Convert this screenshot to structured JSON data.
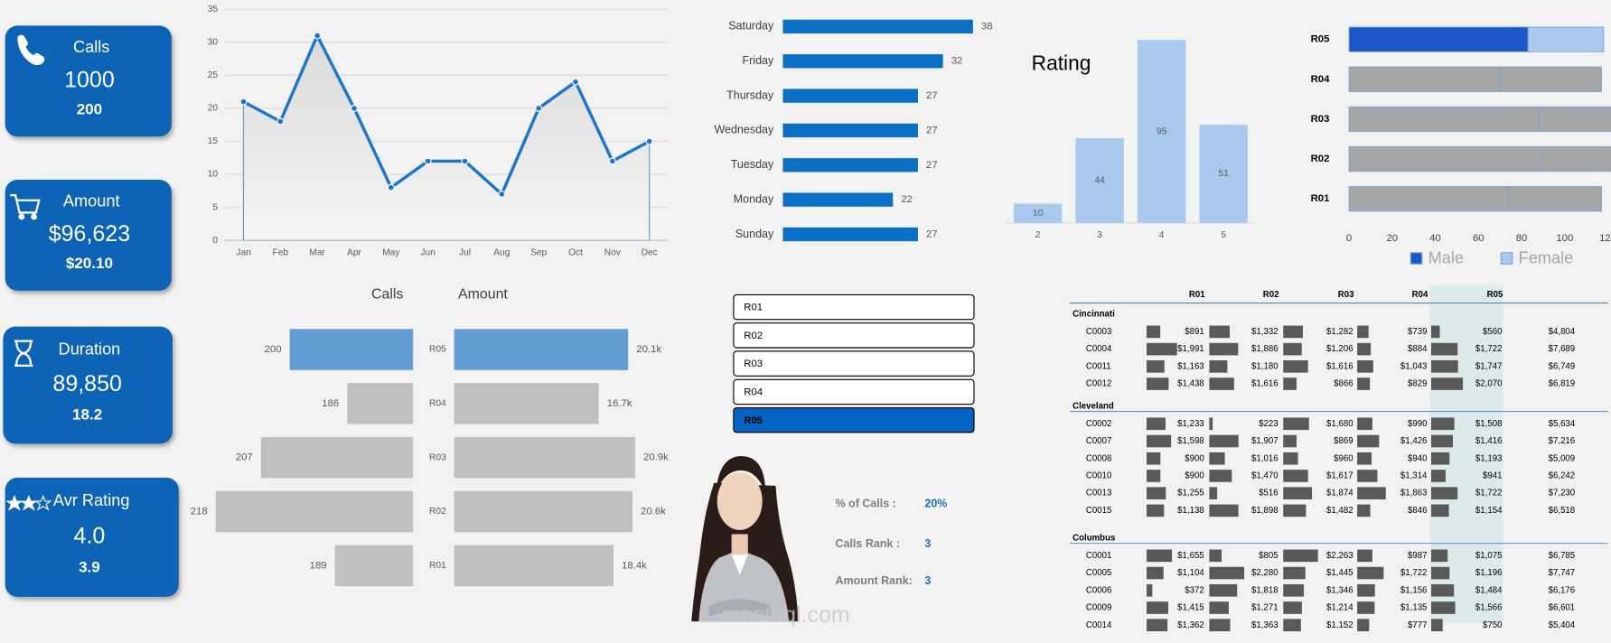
{
  "kpis": [
    {
      "label": "Calls",
      "value": "1000",
      "sub": "200"
    },
    {
      "label": "Amount",
      "value": "$96,623",
      "sub": "$20.10"
    },
    {
      "label": "Duration",
      "value": "89,850",
      "sub": "18.2"
    },
    {
      "label": "Avr Rating",
      "value": "4.0",
      "sub": "3.9"
    }
  ],
  "chart_data": [
    {
      "type": "line",
      "categories": [
        "Jan",
        "Feb",
        "Mar",
        "Apr",
        "May",
        "Jun",
        "Jul",
        "Aug",
        "Sep",
        "Oct",
        "Nov",
        "Dec"
      ],
      "values": [
        21,
        18,
        31,
        20,
        8,
        12,
        12,
        7,
        20,
        24,
        12,
        15
      ],
      "color": "#1b75c9",
      "ylim": [
        0,
        35
      ],
      "yticks": [
        0,
        5,
        10,
        15,
        20,
        25,
        30,
        35
      ],
      "grid": true
    },
    {
      "type": "bar",
      "orientation": "horizontal",
      "categories": [
        "Saturday",
        "Friday",
        "Thursday",
        "Wednesday",
        "Tuesday",
        "Monday",
        "Sunday"
      ],
      "values": [
        38,
        32,
        27,
        27,
        27,
        22,
        27
      ],
      "color": "#0b6fc6"
    },
    {
      "type": "bar",
      "orientation": "vertical",
      "title": "Rating",
      "categories": [
        "2",
        "3",
        "4",
        "5"
      ],
      "values": [
        10,
        44,
        95,
        51
      ],
      "color": "#a9c9ef"
    },
    {
      "type": "stacked_bar",
      "orientation": "horizontal",
      "categories": [
        "R05",
        "R04",
        "R03",
        "R02",
        "R01"
      ],
      "highlight": "R05",
      "muted_color": "#a6a6a6",
      "xlim": [
        0,
        120
      ],
      "xticks": [
        0,
        20,
        40,
        60,
        80,
        100,
        120
      ],
      "series": [
        {
          "name": "Male",
          "color": "#1a56c8",
          "values": [
            83,
            70,
            88,
            89,
            74
          ],
          "value_labels": [
            "83",
            null,
            null,
            null,
            null
          ]
        },
        {
          "name": "Female",
          "color": "#a9c9ef",
          "values": [
            35,
            47,
            37,
            35,
            43
          ]
        }
      ]
    },
    {
      "type": "bar",
      "orientation": "horizontal",
      "categories": [
        "R05",
        "R04",
        "R03",
        "R02",
        "R01"
      ],
      "highlight": "R05",
      "muted_color": "#bfbfbf",
      "series": [
        {
          "name": "Calls",
          "color": "#629dd3",
          "values": [
            200,
            186,
            207,
            218,
            189
          ],
          "xlim": [
            170,
            220
          ]
        },
        {
          "name": "Amount",
          "color": "#629dd3",
          "values": [
            20100,
            16700,
            20900,
            20600,
            18400
          ],
          "value_labels": [
            "20.1k",
            "16.7k",
            "20.9k",
            "20.6k",
            "18.4k"
          ],
          "xlim": [
            0,
            21000
          ]
        }
      ]
    }
  ],
  "slicer": {
    "items": [
      "R01",
      "R02",
      "R03",
      "R04",
      "R05"
    ],
    "selected": "R05"
  },
  "stats": [
    {
      "label": "% of Calls :",
      "value": "20%"
    },
    {
      "label": "Calls Rank :",
      "value": "3"
    },
    {
      "label": "Amount Rank:",
      "value": "3"
    }
  ],
  "watermark": "mostaql.com",
  "table": {
    "columns": [
      "R01",
      "R02",
      "R03",
      "R04",
      "R05"
    ],
    "highlight": "R05",
    "groups": [
      {
        "name": "Cincinnati",
        "rows": [
          {
            "name": "C0003",
            "values": [
              891,
              1332,
              1282,
              739,
              560
            ],
            "labels": [
              "$891",
              "$1,332",
              "$1,282",
              "$739",
              "$560"
            ],
            "total": "$4,804"
          },
          {
            "name": "C0004",
            "values": [
              1991,
              1886,
              1206,
              884,
              1722
            ],
            "labels": [
              "$1,991",
              "$1,886",
              "$1,206",
              "$884",
              "$1,722"
            ],
            "total": "$7,689"
          },
          {
            "name": "C0011",
            "values": [
              1163,
              1180,
              1616,
              1043,
              1747
            ],
            "labels": [
              "$1,163",
              "$1,180",
              "$1,616",
              "$1,043",
              "$1,747"
            ],
            "total": "$6,749"
          },
          {
            "name": "C0012",
            "values": [
              1438,
              1616,
              866,
              829,
              2070
            ],
            "labels": [
              "$1,438",
              "$1,616",
              "$866",
              "$829",
              "$2,070"
            ],
            "total": "$6,819"
          }
        ]
      },
      {
        "name": "Cleveland",
        "rows": [
          {
            "name": "C0002",
            "values": [
              1233,
              223,
              1680,
              990,
              1508
            ],
            "labels": [
              "$1,233",
              "$223",
              "$1,680",
              "$990",
              "$1,508"
            ],
            "total": "$5,634"
          },
          {
            "name": "C0007",
            "values": [
              1598,
              1907,
              869,
              1426,
              1416
            ],
            "labels": [
              "$1,598",
              "$1,907",
              "$869",
              "$1,426",
              "$1,416"
            ],
            "total": "$7,216"
          },
          {
            "name": "C0008",
            "values": [
              900,
              1016,
              960,
              940,
              1193
            ],
            "labels": [
              "$900",
              "$1,016",
              "$960",
              "$940",
              "$1,193"
            ],
            "total": "$5,009"
          },
          {
            "name": "C0010",
            "values": [
              900,
              1470,
              1617,
              1314,
              941
            ],
            "labels": [
              "$900",
              "$1,470",
              "$1,617",
              "$1,314",
              "$941"
            ],
            "total": "$6,242"
          },
          {
            "name": "C0013",
            "values": [
              1255,
              516,
              1874,
              1863,
              1722
            ],
            "labels": [
              "$1,255",
              "$516",
              "$1,874",
              "$1,863",
              "$1,722"
            ],
            "total": "$7,230"
          },
          {
            "name": "C0015",
            "values": [
              1138,
              1898,
              1482,
              846,
              1154
            ],
            "labels": [
              "$1,138",
              "$1,898",
              "$1,482",
              "$846",
              "$1,154"
            ],
            "total": "$6,518"
          }
        ]
      },
      {
        "name": "Columbus",
        "rows": [
          {
            "name": "C0001",
            "values": [
              1655,
              805,
              2263,
              987,
              1075
            ],
            "labels": [
              "$1,655",
              "$805",
              "$2,263",
              "$987",
              "$1,075"
            ],
            "total": "$6,785"
          },
          {
            "name": "C0005",
            "values": [
              1104,
              2280,
              1445,
              1722,
              1196
            ],
            "labels": [
              "$1,104",
              "$2,280",
              "$1,445",
              "$1,722",
              "$1,196"
            ],
            "total": "$7,747"
          },
          {
            "name": "C0006",
            "values": [
              372,
              1818,
              1346,
              1156,
              1484
            ],
            "labels": [
              "$372",
              "$1,818",
              "$1,346",
              "$1,156",
              "$1,484"
            ],
            "total": "$6,176"
          },
          {
            "name": "C0009",
            "values": [
              1415,
              1271,
              1214,
              1135,
              1566
            ],
            "labels": [
              "$1,415",
              "$1,271",
              "$1,214",
              "$1,135",
              "$1,566"
            ],
            "total": "$6,601"
          },
          {
            "name": "C0014",
            "values": [
              1362,
              1363,
              1152,
              777,
              750
            ],
            "labels": [
              "$1,362",
              "$1,363",
              "$1,152",
              "$777",
              "$750"
            ],
            "total": "$5,404"
          }
        ]
      }
    ]
  }
}
